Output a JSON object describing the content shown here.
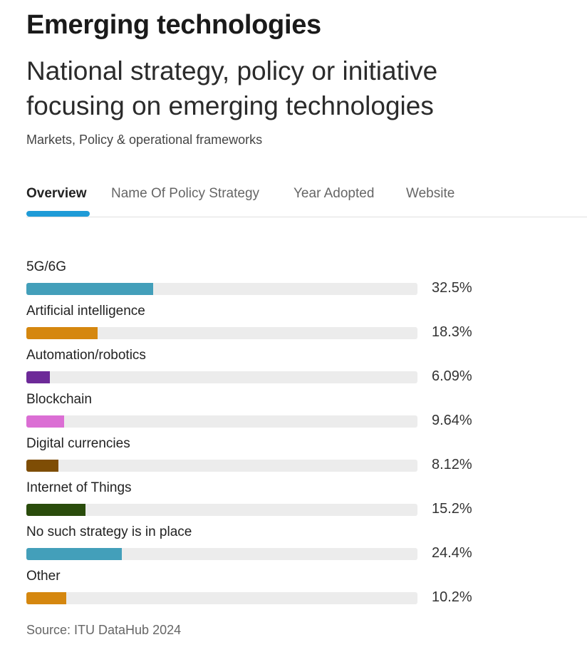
{
  "header": {
    "title": "Emerging technologies",
    "subtitle": "National strategy, policy or initiative focusing on emerging technologies",
    "category": "Markets, Policy & operational frameworks"
  },
  "tabs": [
    {
      "label": "Overview",
      "active": true
    },
    {
      "label": "Name Of Policy Strategy",
      "active": false
    },
    {
      "label": "Year Adopted",
      "active": false
    },
    {
      "label": "Website",
      "active": false
    }
  ],
  "colors": {
    "accent": "#1f9bd7",
    "track": "#ececec"
  },
  "chart_data": {
    "type": "bar",
    "orientation": "horizontal",
    "unit": "%",
    "xlim": [
      0,
      100
    ],
    "categories": [
      "5G/6G",
      "Artificial intelligence",
      "Automation/robotics",
      "Blockchain",
      "Digital currencies",
      "Internet of Things",
      "No such strategy is in place",
      "Other"
    ],
    "values": [
      32.5,
      18.3,
      6.09,
      9.64,
      8.12,
      15.2,
      24.4,
      10.2
    ],
    "value_labels": [
      "32.5%",
      "18.3%",
      "6.09%",
      "9.64%",
      "8.12%",
      "15.2%",
      "24.4%",
      "10.2%"
    ],
    "colors": [
      "#439fba",
      "#d5870f",
      "#6d2a98",
      "#db6ed4",
      "#7e4d05",
      "#2a4c0c",
      "#439fba",
      "#d5870f"
    ]
  },
  "footer": {
    "source": "Source: ITU DataHub 2024"
  }
}
